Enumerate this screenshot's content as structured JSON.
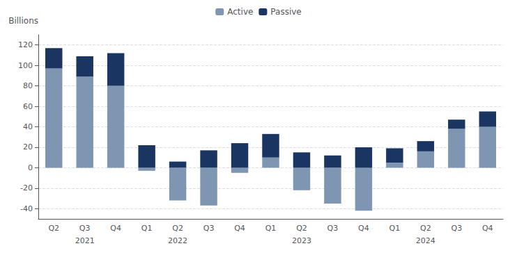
{
  "chart_data": {
    "type": "bar",
    "stacked": true,
    "ylabel": "Billions",
    "categories": [
      "Q2",
      "Q3",
      "Q4",
      "Q1",
      "Q2",
      "Q3",
      "Q4",
      "Q1",
      "Q2",
      "Q3",
      "Q4",
      "Q1",
      "Q2",
      "Q3",
      "Q4"
    ],
    "year_categories": [
      null,
      "2021",
      null,
      null,
      "2022",
      null,
      null,
      null,
      "2023",
      null,
      null,
      null,
      "2024",
      null,
      null
    ],
    "series": [
      {
        "name": "Active",
        "color": "#7f96b2",
        "values": [
          97,
          89,
          80,
          -3,
          -32,
          -37,
          -5,
          10,
          -22,
          -35,
          -42,
          5,
          16,
          38,
          40
        ]
      },
      {
        "name": "Passive",
        "color": "#1a3562",
        "values": [
          20,
          20,
          32,
          22,
          6,
          17,
          24,
          23,
          15,
          12,
          20,
          14,
          10,
          9,
          15
        ]
      }
    ],
    "ylim": [
      -50,
      130
    ],
    "yticks": [
      -40,
      -20,
      0,
      20,
      40,
      60,
      80,
      100,
      120
    ],
    "grid": true,
    "legend": "top"
  }
}
